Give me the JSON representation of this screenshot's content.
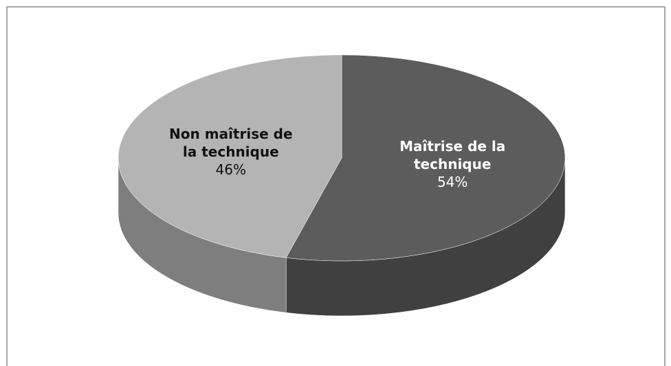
{
  "chart_data": {
    "type": "pie",
    "categories": [
      "Maîtrise de la technique",
      "Non maîtrise de la technique"
    ],
    "values": [
      54,
      46
    ],
    "value_labels": [
      "54%",
      "46%"
    ],
    "colors": [
      "#5c5c5c",
      "#b4b4b4"
    ]
  }
}
